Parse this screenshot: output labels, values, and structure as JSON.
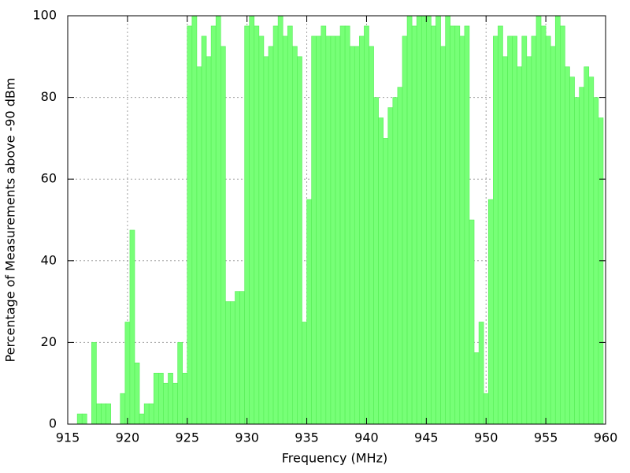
{
  "chart_data": {
    "type": "bar",
    "x_label": "Frequency (MHz)",
    "y_label": "Percentage of Measurements above -90 dBm",
    "x": [
      915.2,
      915.6,
      916.0,
      916.4,
      916.8,
      917.2,
      917.6,
      918.0,
      918.4,
      918.8,
      919.2,
      919.6,
      920.0,
      920.4,
      920.8,
      921.2,
      921.6,
      922.0,
      922.4,
      922.8,
      923.2,
      923.6,
      924.0,
      924.4,
      924.8,
      925.2,
      925.6,
      926.0,
      926.4,
      926.8,
      927.2,
      927.6,
      928.0,
      928.4,
      928.8,
      929.2,
      929.6,
      930.0,
      930.4,
      930.8,
      931.2,
      931.6,
      932.0,
      932.4,
      932.8,
      933.2,
      933.6,
      934.0,
      934.4,
      934.8,
      935.2,
      935.6,
      936.0,
      936.4,
      936.8,
      937.2,
      937.6,
      938.0,
      938.4,
      938.8,
      939.2,
      939.6,
      940.0,
      940.4,
      940.8,
      941.2,
      941.6,
      942.0,
      942.4,
      942.8,
      943.2,
      943.6,
      944.0,
      944.4,
      944.8,
      945.2,
      945.6,
      946.0,
      946.4,
      946.8,
      947.2,
      947.6,
      948.0,
      948.4,
      948.8,
      949.2,
      949.6,
      950.0,
      950.4,
      950.8,
      951.2,
      951.6,
      952.0,
      952.4,
      952.8,
      953.2,
      953.6,
      954.0,
      954.4,
      954.8,
      955.2,
      955.6,
      956.0,
      956.4,
      956.8,
      957.2,
      957.6,
      958.0,
      958.4,
      958.8,
      959.2,
      959.6
    ],
    "values": [
      0,
      0,
      2.5,
      2.5,
      0,
      20,
      5,
      5,
      5,
      0,
      0,
      7.5,
      25,
      47.5,
      15,
      2.5,
      5,
      5,
      12.5,
      12.5,
      10,
      12.5,
      10,
      20,
      12.5,
      97.5,
      100,
      87.5,
      95,
      90,
      97.5,
      100,
      92.5,
      30,
      30,
      32.5,
      32.5,
      97.5,
      100,
      97.5,
      95,
      90,
      92.5,
      97.5,
      100,
      95,
      97.5,
      92.5,
      90,
      25,
      55,
      95,
      95,
      97.5,
      95,
      95,
      95,
      97.5,
      97.5,
      92.5,
      92.5,
      95,
      97.5,
      92.5,
      80,
      75,
      70,
      77.5,
      80,
      82.5,
      95,
      100,
      97.5,
      100,
      100,
      100,
      97.5,
      100,
      92.5,
      100,
      97.5,
      97.5,
      95,
      97.5,
      50,
      17.5,
      25,
      7.5,
      55,
      95,
      97.5,
      90,
      95,
      95,
      87.5,
      95,
      90,
      95,
      100,
      97.5,
      95,
      92.5,
      100,
      97.5,
      87.5,
      85,
      80,
      82.5,
      87.5,
      85,
      80,
      75
    ],
    "color": "#77ff77",
    "xlim": [
      915,
      960
    ],
    "xticks": [
      915,
      920,
      925,
      930,
      935,
      940,
      945,
      950,
      955,
      960
    ],
    "ylim": [
      0,
      100
    ],
    "yticks": [
      0,
      20,
      40,
      60,
      80,
      100
    ],
    "grid": true
  }
}
